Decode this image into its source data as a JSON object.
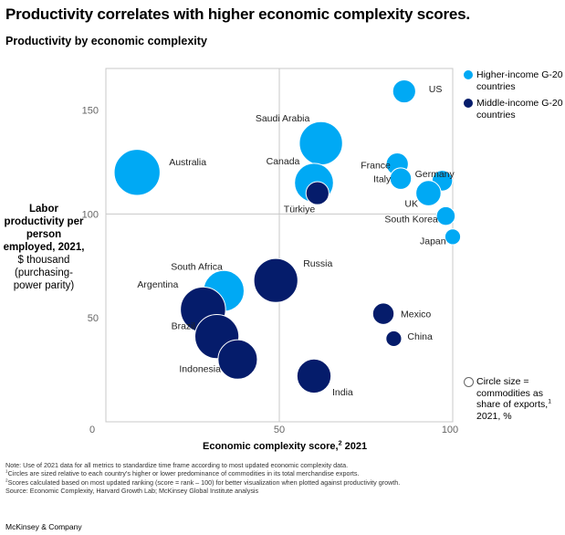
{
  "title": "Productivity correlates with higher economic complexity scores.",
  "subtitle": "Productivity by economic complexity",
  "chart_data": {
    "type": "scatter",
    "title": "Productivity by economic complexity",
    "xlabel": "Economic complexity score,",
    "xlabel_sup": "2",
    "xlabel_suffix": " 2021",
    "ylabel_bold": "Labor productivity per person employed, 2021,",
    "ylabel_normal": "$ thousand (purchasing-power parity)",
    "xlim": [
      0,
      100
    ],
    "ylim": [
      0,
      170
    ],
    "xticks": [
      0,
      50,
      100
    ],
    "yticks": [
      50,
      100,
      150
    ],
    "origin_label": "0",
    "grid": "quadrant lines at x=50 and y=100",
    "size_legend": "Circle size = commodities as share of exports,",
    "size_legend_sup": "1",
    "size_legend_suffix": " 2021, %",
    "series": [
      {
        "name": "Higher-income G-20 countries",
        "color": "#00a9f4",
        "points": [
          {
            "label": "US",
            "x": 86,
            "y": 159,
            "size": 15
          },
          {
            "label": "Saudi Arabia",
            "x": 62,
            "y": 134,
            "size": 53
          },
          {
            "label": "Australia",
            "x": 9,
            "y": 120,
            "size": 60
          },
          {
            "label": "Canada",
            "x": 60,
            "y": 115,
            "size": 43
          },
          {
            "label": "France",
            "x": 84,
            "y": 124,
            "size": 14
          },
          {
            "label": "Germany",
            "x": 97,
            "y": 116,
            "size": 12
          },
          {
            "label": "Italy",
            "x": 85,
            "y": 117,
            "size": 13
          },
          {
            "label": "UK",
            "x": 93,
            "y": 110,
            "size": 18
          },
          {
            "label": "South Korea",
            "x": 98,
            "y": 99,
            "size": 10
          },
          {
            "label": "Japan",
            "x": 100,
            "y": 89,
            "size": 7
          },
          {
            "label": "South Africa",
            "x": 34,
            "y": 63,
            "size": 47
          }
        ]
      },
      {
        "name": "Middle-income G-20 countries",
        "color": "#051c6b",
        "points": [
          {
            "label": "Türkiye",
            "x": 61,
            "y": 110,
            "size": 15
          },
          {
            "label": "Russia",
            "x": 49,
            "y": 68,
            "size": 55
          },
          {
            "label": "Argentina",
            "x": 28,
            "y": 54,
            "size": 58
          },
          {
            "label": "Brazil",
            "x": 32,
            "y": 41,
            "size": 55
          },
          {
            "label": "Indonesia",
            "x": 38,
            "y": 30,
            "size": 44
          },
          {
            "label": "Mexico",
            "x": 80,
            "y": 52,
            "size": 13
          },
          {
            "label": "China",
            "x": 83,
            "y": 40,
            "size": 7
          },
          {
            "label": "India",
            "x": 60,
            "y": 22,
            "size": 33
          }
        ]
      }
    ]
  },
  "notes": [
    "Note: Use of 2021 data for all metrics to standardize time frame according to most updated economic complexity data.",
    "Circles are sized relative to each country's higher or lower predominance of commodities in its total merchandise exports.",
    "Scores calculated based on most updated ranking (score = rank – 100) for better visualization when plotted against productivity growth.",
    "Source: Economic Complexity, Harvard Growth Lab; McKinsey Global Institute analysis"
  ],
  "note_marks": [
    "",
    "1",
    "2",
    ""
  ],
  "footer": "McKinsey & Company"
}
